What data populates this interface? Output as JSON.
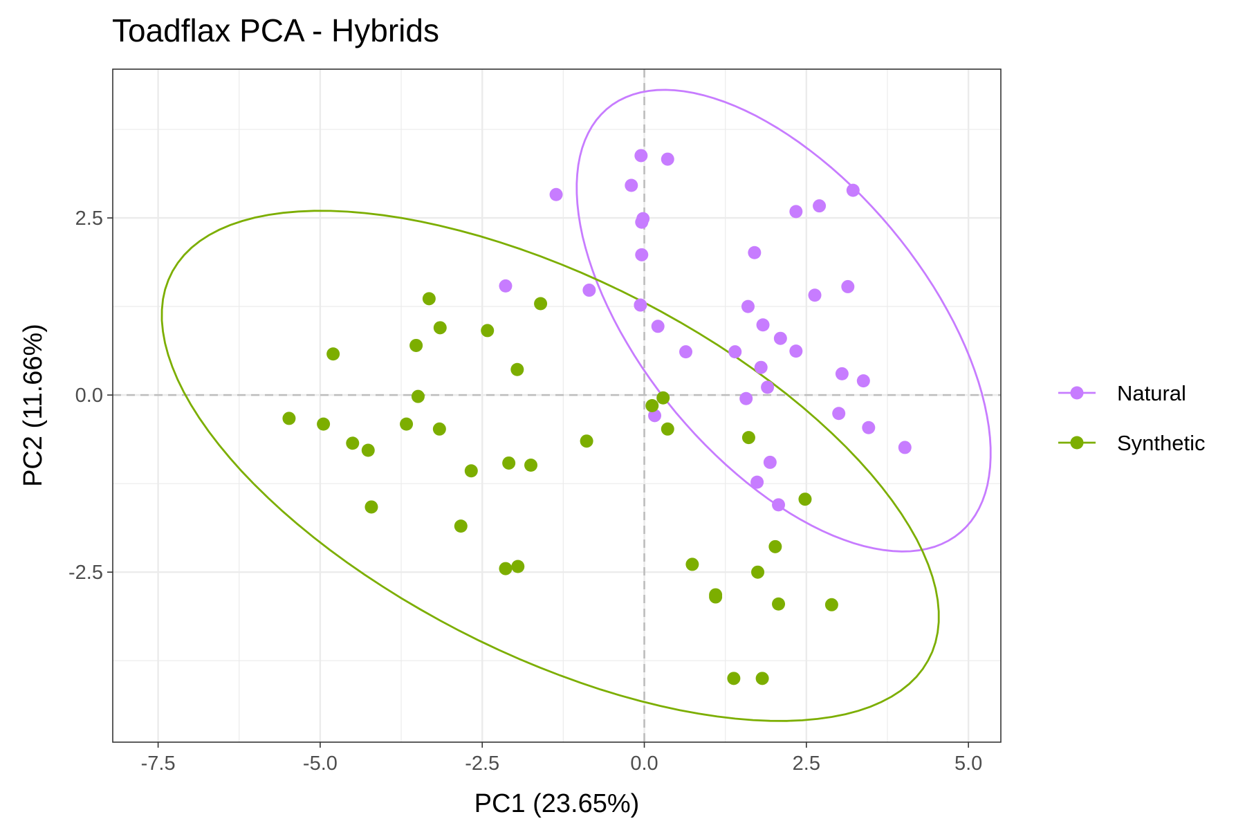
{
  "chart_data": {
    "type": "scatter",
    "title": "Toadflax PCA - Hybrids",
    "xlabel": "PC1 (23.65%)",
    "ylabel": "PC2 (11.66%)",
    "xlim": [
      -8.2,
      5.5
    ],
    "ylim": [
      -4.9,
      4.6
    ],
    "xticks": [
      -7.5,
      -5.0,
      -2.5,
      0.0,
      2.5,
      5.0
    ],
    "xtick_labels": [
      "-7.5",
      "-5.0",
      "-2.5",
      "0.0",
      "2.5",
      "5.0"
    ],
    "yticks": [
      -2.5,
      0.0,
      2.5
    ],
    "ytick_labels": [
      "-2.5",
      "0.0",
      "2.5"
    ],
    "grid": true,
    "reference_lines": {
      "x": 0,
      "y": 0
    },
    "legend_position": "right",
    "series": [
      {
        "name": "Natural",
        "color": "#C77CFF",
        "points": [
          [
            -0.05,
            3.38
          ],
          [
            0.36,
            3.33
          ],
          [
            -1.36,
            2.83
          ],
          [
            -0.2,
            2.96
          ],
          [
            -0.04,
            2.44
          ],
          [
            -0.02,
            2.49
          ],
          [
            -0.04,
            1.98
          ],
          [
            3.22,
            2.89
          ],
          [
            2.34,
            2.59
          ],
          [
            2.7,
            2.67
          ],
          [
            1.7,
            2.01
          ],
          [
            -2.14,
            1.54
          ],
          [
            -0.85,
            1.48
          ],
          [
            3.14,
            1.53
          ],
          [
            2.63,
            1.41
          ],
          [
            -0.06,
            1.27
          ],
          [
            1.6,
            1.25
          ],
          [
            1.83,
            0.99
          ],
          [
            0.21,
            0.97
          ],
          [
            2.1,
            0.8
          ],
          [
            0.64,
            0.61
          ],
          [
            1.4,
            0.61
          ],
          [
            2.34,
            0.62
          ],
          [
            1.8,
            0.39
          ],
          [
            3.05,
            0.3
          ],
          [
            3.38,
            0.2
          ],
          [
            1.9,
            0.11
          ],
          [
            1.57,
            -0.05
          ],
          [
            3.0,
            -0.26
          ],
          [
            0.16,
            -0.29
          ],
          [
            3.46,
            -0.46
          ],
          [
            4.02,
            -0.74
          ],
          [
            1.94,
            -0.95
          ],
          [
            1.74,
            -1.23
          ],
          [
            2.07,
            -1.55
          ]
        ]
      },
      {
        "name": "Synthetic",
        "color": "#7CAE00",
        "points": [
          [
            -3.32,
            1.36
          ],
          [
            -1.6,
            1.29
          ],
          [
            -3.15,
            0.95
          ],
          [
            -2.42,
            0.91
          ],
          [
            -3.52,
            0.7
          ],
          [
            -4.8,
            0.58
          ],
          [
            -1.96,
            0.36
          ],
          [
            -3.49,
            -0.02
          ],
          [
            0.29,
            -0.04
          ],
          [
            0.12,
            -0.15
          ],
          [
            -5.48,
            -0.33
          ],
          [
            -4.95,
            -0.41
          ],
          [
            -3.67,
            -0.41
          ],
          [
            -3.16,
            -0.48
          ],
          [
            0.36,
            -0.48
          ],
          [
            1.61,
            -0.6
          ],
          [
            -0.89,
            -0.65
          ],
          [
            -4.5,
            -0.68
          ],
          [
            -4.26,
            -0.78
          ],
          [
            -2.09,
            -0.96
          ],
          [
            -1.75,
            -0.99
          ],
          [
            -2.67,
            -1.07
          ],
          [
            2.48,
            -1.47
          ],
          [
            -4.21,
            -1.58
          ],
          [
            -2.83,
            -1.85
          ],
          [
            2.02,
            -2.14
          ],
          [
            0.74,
            -2.39
          ],
          [
            -1.95,
            -2.42
          ],
          [
            -2.14,
            -2.45
          ],
          [
            1.75,
            -2.5
          ],
          [
            1.1,
            -2.82
          ],
          [
            1.1,
            -2.85
          ],
          [
            2.07,
            -2.95
          ],
          [
            2.89,
            -2.96
          ],
          [
            1.38,
            -4.0
          ],
          [
            1.82,
            -4.0
          ]
        ]
      }
    ],
    "ellipses": [
      {
        "series": "Natural",
        "center": [
          2.15,
          1.05
        ],
        "semi_axes": [
          4.05,
          2.1
        ],
        "angle_deg": -46
      },
      {
        "series": "Synthetic",
        "center": [
          -1.45,
          -1.0
        ],
        "semi_axes": [
          6.45,
          2.7
        ],
        "angle_deg": -24
      }
    ]
  }
}
